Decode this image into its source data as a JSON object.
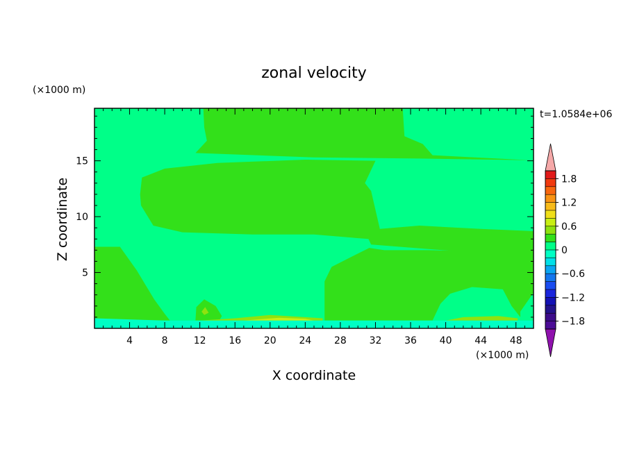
{
  "chart_data": {
    "type": "heatmap",
    "title": "zonal velocity",
    "xlabel": "X coordinate",
    "ylabel": "Z coordinate",
    "x_unit": "(×1000 m)",
    "y_unit": "(×1000 m)",
    "time_label": "t=1.0584e+06",
    "xlim": [
      0,
      50
    ],
    "ylim": [
      0,
      19.7
    ],
    "x_ticks": [
      4,
      8,
      12,
      16,
      20,
      24,
      28,
      32,
      36,
      40,
      44,
      48
    ],
    "y_ticks": [
      5,
      10,
      15
    ],
    "colorbar": {
      "labels": [
        "1.8",
        "1.2",
        "0.6",
        "0",
        "−0.6",
        "−1.2",
        "−1.8"
      ],
      "label_values": [
        1.8,
        1.2,
        0.6,
        0,
        -0.6,
        -1.2,
        -1.8
      ],
      "range": [
        -2.0,
        2.0
      ],
      "colors": [
        "#e11a1a",
        "#f13a0f",
        "#f8670e",
        "#f99313",
        "#f8bb1a",
        "#f0df1a",
        "#c8ef14",
        "#8fe20f",
        "#33e01a",
        "#00ff88",
        "#00ffc4",
        "#00e0e8",
        "#0aa6f2",
        "#1476ee",
        "#1a4cf0",
        "#1a25dc",
        "#1411b4",
        "#23128c",
        "#3d0c8a",
        "#4c0d96"
      ],
      "over_color": "#f5a8a8",
      "under_color": "#8f11ad"
    },
    "field_colors": {
      "background": "#00ff88",
      "positive": "#33e01a",
      "weak_positive": "#8fe20f",
      "strong_positive": "#c8ef14",
      "negative": "#00ffc4"
    },
    "regions": [
      {
        "sign": "positive",
        "level": 0.15,
        "points": [
          [
            12.4,
            19.7
          ],
          [
            35.1,
            19.7
          ],
          [
            35.3,
            17.2
          ],
          [
            37.4,
            16.5
          ],
          [
            38.5,
            15.5
          ],
          [
            49.5,
            15.05
          ],
          [
            37,
            15.2
          ],
          [
            25,
            15.3
          ],
          [
            11.5,
            15.7
          ],
          [
            12.8,
            16.8
          ],
          [
            12.5,
            18
          ]
        ]
      },
      {
        "sign": "positive",
        "level": 0.15,
        "points": [
          [
            5.4,
            13.5
          ],
          [
            8,
            14.3
          ],
          [
            14,
            14.8
          ],
          [
            24,
            15.1
          ],
          [
            32,
            15.0
          ],
          [
            30.8,
            13.0
          ],
          [
            31.5,
            12.3
          ],
          [
            32.5,
            8.9
          ],
          [
            37,
            9.2
          ],
          [
            44,
            8.9
          ],
          [
            50,
            8.7
          ],
          [
            50,
            6.9
          ],
          [
            43,
            6.8
          ],
          [
            31.5,
            7.5
          ],
          [
            31.2,
            8.0
          ],
          [
            25,
            8.4
          ],
          [
            18,
            8.4
          ],
          [
            10,
            8.6
          ],
          [
            6.7,
            9.2
          ],
          [
            5.3,
            11.0
          ],
          [
            5.2,
            12.0
          ]
        ]
      },
      {
        "sign": "positive",
        "level": 0.15,
        "points": [
          [
            0,
            7.3
          ],
          [
            2.9,
            7.3
          ],
          [
            4.8,
            5.2
          ],
          [
            6.8,
            2.6
          ],
          [
            8,
            1.3
          ],
          [
            8.6,
            0.7
          ],
          [
            0,
            0.7
          ]
        ]
      },
      {
        "sign": "positive",
        "level": 0.15,
        "points": [
          [
            26.2,
            0.7
          ],
          [
            26.2,
            4.2
          ],
          [
            27,
            5.5
          ],
          [
            29,
            6.3
          ],
          [
            31.3,
            7.2
          ],
          [
            33,
            7.0
          ],
          [
            38,
            7.0
          ],
          [
            44,
            6.9
          ],
          [
            50,
            6.9
          ],
          [
            50,
            3.2
          ],
          [
            48.5,
            1.5
          ],
          [
            48.5,
            1.0
          ],
          [
            47.5,
            2.0
          ],
          [
            46.5,
            3.5
          ],
          [
            43,
            3.7
          ],
          [
            40.5,
            3.1
          ],
          [
            39.4,
            2.2
          ],
          [
            38.5,
            0.7
          ]
        ]
      },
      {
        "sign": "positive",
        "level": 0.15,
        "points": [
          [
            11.5,
            0.7
          ],
          [
            11.6,
            1.9
          ],
          [
            12.5,
            2.6
          ],
          [
            13.8,
            2.0
          ],
          [
            14.5,
            1.1
          ],
          [
            14.2,
            0.7
          ]
        ]
      },
      {
        "sign": "weak_positive",
        "level": 0.35,
        "points": [
          [
            12,
            0.7
          ],
          [
            16,
            0.9
          ],
          [
            20,
            1.2
          ],
          [
            24,
            1.0
          ],
          [
            26,
            0.9
          ],
          [
            26,
            0.7
          ]
        ]
      },
      {
        "sign": "weak_positive",
        "level": 0.35,
        "points": [
          [
            40,
            0.7
          ],
          [
            42,
            1.0
          ],
          [
            46,
            1.1
          ],
          [
            48.2,
            0.9
          ],
          [
            48.2,
            0.7
          ]
        ]
      },
      {
        "sign": "weak_positive",
        "level": 0.35,
        "points": [
          [
            12.2,
            1.5
          ],
          [
            12.6,
            1.9
          ],
          [
            13.0,
            1.4
          ],
          [
            12.5,
            1.2
          ]
        ]
      },
      {
        "sign": "strong_positive",
        "level": 0.55,
        "points": [
          [
            17,
            0.7
          ],
          [
            21,
            0.95
          ],
          [
            24,
            0.85
          ],
          [
            25,
            0.7
          ]
        ]
      },
      {
        "sign": "negative",
        "level": -0.15,
        "points": [
          [
            0,
            0
          ],
          [
            50,
            0
          ],
          [
            50,
            0.7
          ],
          [
            26,
            0.7
          ],
          [
            8,
            0.7
          ],
          [
            0,
            0.9
          ]
        ]
      }
    ]
  }
}
